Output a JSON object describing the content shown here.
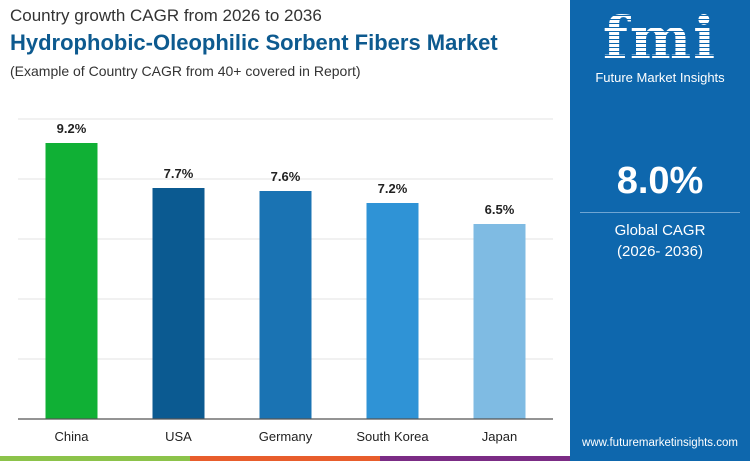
{
  "header": {
    "subtitle": "Country growth CAGR from 2026 to 2036",
    "title": "Hydrophobic-Oleophilic Sorbent Fibers Market",
    "note": "(Example of Country CAGR from 40+ covered in Report)"
  },
  "sidebar": {
    "logo_text": "fmi",
    "logo_sub": "Future Market Insights",
    "cagr_value": "8.0%",
    "cagr_label": "Global CAGR",
    "cagr_period": "(2026- 2036)",
    "url": "www.futuremarketinsights.com",
    "color": "#0e67ad"
  },
  "chart_data": {
    "type": "bar",
    "categories": [
      "China",
      "USA",
      "Germany",
      "South Korea",
      "Japan"
    ],
    "values": [
      9.2,
      7.7,
      7.6,
      7.2,
      6.5
    ],
    "labels": [
      "9.2%",
      "7.7%",
      "7.6%",
      "7.2%",
      "6.5%"
    ],
    "colors": [
      "#10b035",
      "#0b5a91",
      "#1a73b3",
      "#2f93d6",
      "#7fbbe3"
    ],
    "ylim": [
      0,
      10
    ],
    "grid": true,
    "yticks_shown": false
  }
}
